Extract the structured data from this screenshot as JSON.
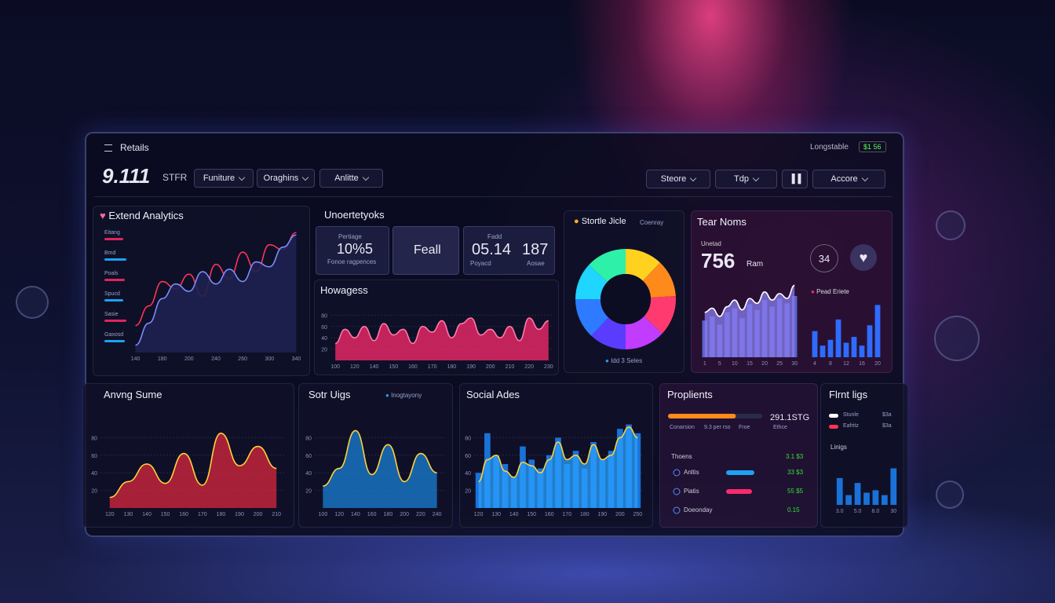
{
  "header": {
    "menu_title": "Retails",
    "metric": "9.111",
    "metric_unit": "STFR",
    "tabs": [
      "Funiture",
      "Oraghins",
      "Anlitte"
    ],
    "status": "Longstable",
    "badge": "$1 56",
    "actions": [
      "Steore",
      "Tdp",
      "Accore"
    ]
  },
  "extend": {
    "title": "Extend Analytics",
    "rows": [
      {
        "label": "Eitang",
        "value": 60,
        "color": "#e0245e"
      },
      {
        "label": "Bmd",
        "value": 70,
        "color": "#1da1f2"
      },
      {
        "label": "Poals",
        "value": 65,
        "color": "#e0245e"
      },
      {
        "label": "Spucd",
        "value": 60,
        "color": "#1da1f2"
      },
      {
        "label": "Sasie",
        "value": 70,
        "color": "#e0245e"
      },
      {
        "label": "Gaxosd",
        "value": 65,
        "color": "#1da1f2"
      }
    ],
    "chart": {
      "type": "line",
      "categories": [
        "140",
        null,
        "180",
        null,
        "200",
        null,
        "240",
        null,
        "260",
        null,
        "300",
        null,
        "340"
      ],
      "ylim": [
        0,
        100
      ],
      "series": [
        {
          "color": "#ff3355",
          "values": [
            22,
            38,
            58,
            52,
            64,
            46,
            72,
            60,
            82,
            66,
            88,
            84,
            98
          ]
        },
        {
          "color": "#7a8cff",
          "fill": "#1e2150",
          "values": [
            6,
            24,
            44,
            56,
            50,
            66,
            56,
            68,
            58,
            74,
            70,
            86,
            96
          ]
        }
      ]
    }
  },
  "stats": {
    "title": "Unoertetyoks",
    "tiles": [
      {
        "label": "Pertiage",
        "value": "10%5",
        "caption": "Fonoe ragpences"
      },
      {
        "value": "Feall"
      },
      {
        "label": "Fadd",
        "value": "05.14",
        "value2": "187",
        "caption": "Poyacd",
        "caption2": "Aosae"
      }
    ]
  },
  "howagess": {
    "title": "Howagess",
    "chart": {
      "type": "area",
      "color": "#ff2a6d",
      "line_color": "#ff7aa8",
      "categories": [
        "100",
        null,
        "120",
        null,
        "140",
        null,
        "150",
        null,
        "160",
        null,
        "170",
        null,
        "180",
        null,
        "190",
        null,
        "200",
        null,
        "210",
        null,
        "220",
        null,
        "230"
      ],
      "values": [
        30,
        55,
        40,
        60,
        35,
        65,
        45,
        55,
        30,
        60,
        50,
        70,
        40,
        65,
        75,
        45,
        55,
        40,
        60,
        35,
        75,
        55,
        70
      ],
      "ylim": [
        0,
        100
      ],
      "yticks": [
        20,
        40,
        60,
        80
      ],
      "grid": true
    }
  },
  "donut": {
    "title": "Stortle Jicle",
    "filter": "Coenray",
    "legend": "Idd 3 Seles",
    "chart": {
      "type": "pie",
      "values": [
        12,
        12,
        13,
        13,
        12,
        13,
        12,
        13
      ],
      "colors": [
        "#ffd21f",
        "#ff8a1c",
        "#ff3a6e",
        "#c13cff",
        "#5a3cff",
        "#2e7bff",
        "#1ed6ff",
        "#2ff0a8"
      ]
    }
  },
  "tear": {
    "title": "Tear Noms",
    "label": "Unetad",
    "value": "756",
    "unit": "Ram",
    "badge": "34",
    "chart": {
      "type": "combo",
      "categories": [
        "1",
        null,
        "5",
        null,
        "10",
        null,
        "15",
        null,
        "20",
        null,
        "25",
        null,
        "30"
      ],
      "ylim": [
        0,
        100
      ],
      "series": [
        {
          "style": "bar",
          "color": "#5b63c9",
          "values": [
            45,
            50,
            40,
            55,
            60,
            48,
            65,
            58,
            70,
            62,
            72,
            66,
            75
          ]
        },
        {
          "style": "area",
          "color": "#8a7cf0",
          "line_color": "#ffffff",
          "values": [
            55,
            60,
            50,
            62,
            70,
            58,
            72,
            66,
            80,
            70,
            78,
            72,
            88
          ]
        }
      ]
    },
    "mini": {
      "title": "Pead Eriete",
      "chart": {
        "type": "bar",
        "color": "#2f6bff",
        "categories": [
          "4",
          null,
          "8",
          null,
          "12",
          null,
          "16",
          null,
          "20"
        ],
        "values": [
          45,
          20,
          30,
          65,
          25,
          35,
          20,
          55,
          90
        ],
        "ylim": [
          0,
          100
        ]
      }
    }
  },
  "anvng": {
    "title": "Anvng Sume",
    "chart": {
      "type": "area",
      "color": "#d9253f",
      "line_color": "#ffd13b",
      "categories": [
        "120",
        "130",
        "140",
        "150",
        "160",
        "170",
        "180",
        "190",
        "200",
        "210"
      ],
      "values": [
        12,
        30,
        50,
        28,
        62,
        26,
        85,
        48,
        70,
        45
      ],
      "ylim": [
        0,
        100
      ],
      "yticks": [
        20,
        40,
        60,
        80
      ],
      "grid": true
    }
  },
  "sotr": {
    "title": "Sotr Uigs",
    "legend": "Inogtayony",
    "chart": {
      "type": "area",
      "color": "#1a7fd6",
      "line_color": "#ffd13b",
      "categories": [
        "100",
        "120",
        "140",
        "160",
        "180",
        "200",
        "220",
        "240"
      ],
      "values": [
        25,
        45,
        88,
        38,
        72,
        30,
        62,
        40
      ],
      "ylim": [
        0,
        100
      ],
      "yticks": [
        20,
        40,
        60,
        80
      ],
      "grid": true
    }
  },
  "social": {
    "title": "Social Ades",
    "chart": {
      "type": "combo",
      "categories": [
        "120",
        null,
        "130",
        null,
        "140",
        null,
        "150",
        null,
        "160",
        null,
        "170",
        null,
        "180",
        null,
        "190",
        null,
        "200",
        null,
        "250"
      ],
      "ylim": [
        0,
        100
      ],
      "yticks": [
        20,
        40,
        60,
        80
      ],
      "grid": true,
      "series": [
        {
          "style": "bar",
          "color": "#1a72d8",
          "values": [
            40,
            85,
            60,
            50,
            35,
            70,
            55,
            45,
            60,
            80,
            50,
            65,
            45,
            75,
            55,
            65,
            90,
            95,
            85
          ]
        },
        {
          "style": "area",
          "color": "#2aa0ff",
          "line_color": "#ffd13b",
          "values": [
            30,
            55,
            60,
            42,
            35,
            52,
            48,
            40,
            55,
            75,
            55,
            60,
            50,
            72,
            55,
            60,
            80,
            92,
            80
          ]
        }
      ]
    }
  },
  "proplients": {
    "title": "Proplients",
    "amount": "291.1STG",
    "progress": 72,
    "progress_color": "#ff8a1c",
    "captions": [
      "Conarsion",
      "9.3 per rso",
      "Froe",
      "Ethce"
    ],
    "list_title": "Thoens",
    "list_amount": "3.1 $3",
    "items": [
      {
        "label": "Anltis",
        "value": 60,
        "amount": "33 $3",
        "color": "#1da1f2"
      },
      {
        "label": "Piatis",
        "value": 55,
        "amount": "55 $5",
        "color": "#ff2a6d"
      },
      {
        "label": "Doeonday",
        "amount": "0.15"
      }
    ]
  },
  "flrnt": {
    "title": "Flrnt ligs",
    "rows": [
      {
        "label": "Stunle",
        "amount": "$3a",
        "color": "#ffffff"
      },
      {
        "label": "Eafritz",
        "amount": "$3a",
        "color": "#ff3355"
      }
    ],
    "chart": {
      "title": "Linigs",
      "type": "bar",
      "color": "#1a72d8",
      "categories": [
        "3.0",
        null,
        "5.0",
        null,
        "8.0",
        null,
        "30"
      ],
      "values": [
        55,
        20,
        45,
        25,
        30,
        20,
        75
      ],
      "ylim": [
        0,
        100
      ]
    }
  }
}
